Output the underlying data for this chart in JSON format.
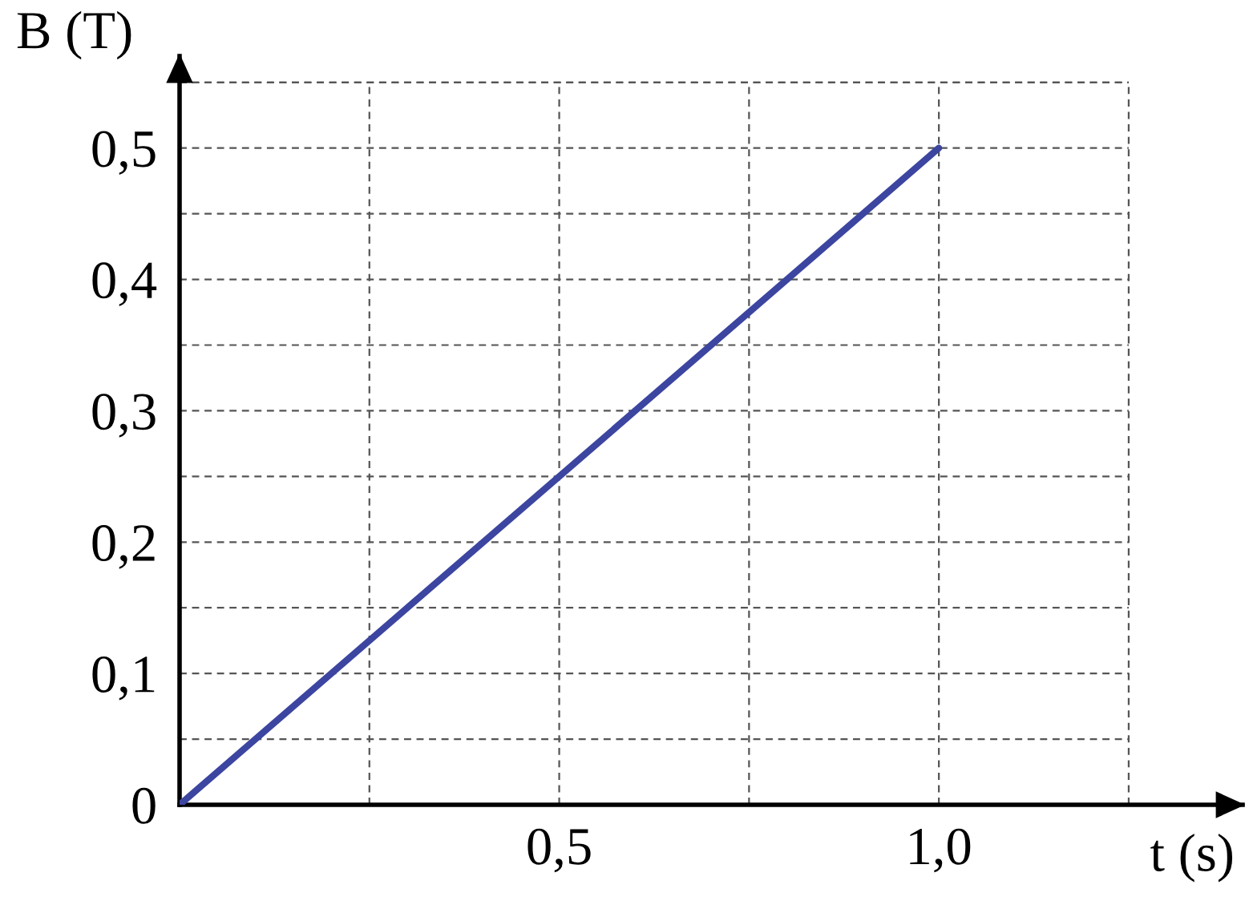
{
  "chart_data": {
    "type": "line",
    "xlabel": "t (s)",
    "ylabel": "B (T)",
    "series": [
      {
        "color": "#3c45a0",
        "x": [
          0,
          1.0
        ],
        "values": [
          0,
          0.5
        ]
      }
    ],
    "xlim": [
      0,
      1.4
    ],
    "ylim": [
      0,
      0.57
    ],
    "xticks": [
      {
        "value": 0.25,
        "label": null
      },
      {
        "value": 0.5,
        "label": "0,5"
      },
      {
        "value": 0.75,
        "label": null
      },
      {
        "value": 1.0,
        "label": "1,0"
      },
      {
        "value": 1.25,
        "label": null
      }
    ],
    "yticks": [
      {
        "value": 0,
        "label": "0"
      },
      {
        "value": 0.05,
        "label": null
      },
      {
        "value": 0.1,
        "label": "0,1"
      },
      {
        "value": 0.15,
        "label": null
      },
      {
        "value": 0.2,
        "label": "0,2"
      },
      {
        "value": 0.25,
        "label": null
      },
      {
        "value": 0.3,
        "label": "0,3"
      },
      {
        "value": 0.35,
        "label": null
      },
      {
        "value": 0.4,
        "label": "0,4"
      },
      {
        "value": 0.45,
        "label": null
      },
      {
        "value": 0.5,
        "label": "0,5"
      },
      {
        "value": 0.55,
        "label": null
      }
    ],
    "grid": true,
    "line_style": "solid"
  }
}
